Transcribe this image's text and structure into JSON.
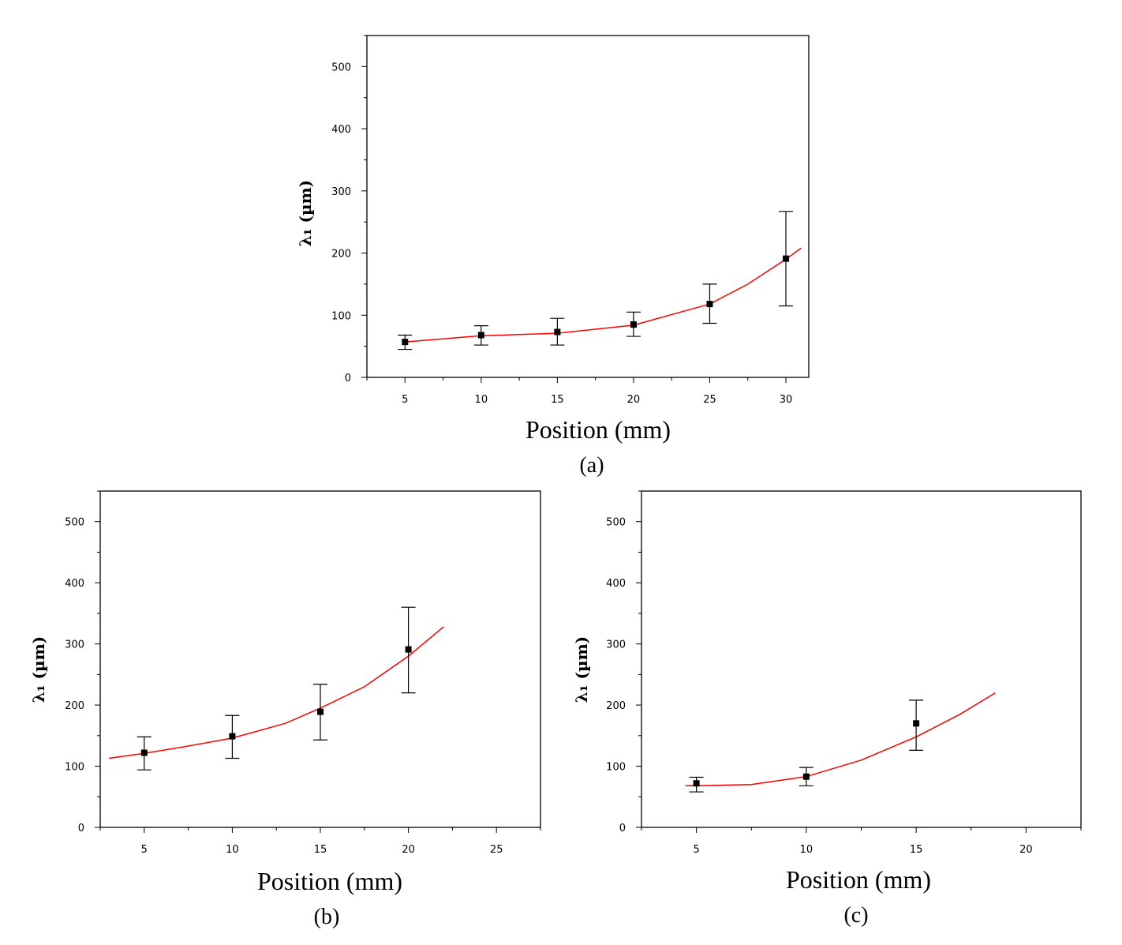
{
  "chart_data": [
    {
      "type": "scatter",
      "panel_label": "(a)",
      "xlabel": "Position (mm)",
      "ylabel": "λ₁ (µm)",
      "xlim": [
        2.5,
        31.5
      ],
      "ylim": [
        0,
        550
      ],
      "xticks": [
        5,
        10,
        15,
        20,
        25,
        30
      ],
      "yticks": [
        0,
        100,
        200,
        300,
        400,
        500
      ],
      "grid": false,
      "legend": "none",
      "marker_color": "#000000",
      "fit_color": "#ff0000",
      "series": [
        {
          "x": [
            5,
            10,
            15,
            20,
            25,
            30
          ],
          "y": [
            57,
            68,
            73,
            85,
            118,
            191
          ],
          "err_low": [
            45,
            52,
            52,
            66,
            87,
            115
          ],
          "err_high": [
            68,
            83,
            95,
            105,
            150,
            267
          ]
        }
      ],
      "fit": {
        "x": [
          5,
          10,
          15,
          20,
          25,
          27.5,
          30,
          31
        ],
        "y": [
          57,
          67,
          71,
          84,
          118,
          150,
          190,
          208
        ]
      }
    },
    {
      "type": "scatter",
      "panel_label": "(b)",
      "xlabel": "Position (mm)",
      "ylabel": "λ₁ (µm)",
      "xlim": [
        2.5,
        27.5
      ],
      "ylim": [
        0,
        550
      ],
      "xticks": [
        5,
        10,
        15,
        20,
        25
      ],
      "yticks": [
        0,
        100,
        200,
        300,
        400,
        500
      ],
      "grid": false,
      "legend": "none",
      "marker_color": "#000000",
      "fit_color": "#ff0000",
      "series": [
        {
          "x": [
            5,
            10,
            15,
            20
          ],
          "y": [
            122,
            149,
            189,
            291
          ],
          "err_low": [
            94,
            113,
            143,
            220
          ],
          "err_high": [
            148,
            183,
            234,
            360
          ]
        }
      ],
      "fit": {
        "x": [
          3,
          5,
          7.5,
          10,
          13,
          15,
          17.5,
          20,
          22
        ],
        "y": [
          113,
          121,
          133,
          146,
          170,
          195,
          230,
          280,
          328
        ]
      }
    },
    {
      "type": "scatter",
      "panel_label": "(c)",
      "xlabel": "Position (mm)",
      "ylabel": "λ₁ (µm)",
      "xlim": [
        2.5,
        22.5
      ],
      "ylim": [
        0,
        550
      ],
      "xticks": [
        5,
        10,
        15,
        20
      ],
      "yticks": [
        0,
        100,
        200,
        300,
        400,
        500
      ],
      "grid": false,
      "legend": "none",
      "marker_color": "#000000",
      "fit_color": "#ff0000",
      "series": [
        {
          "x": [
            5,
            10,
            15
          ],
          "y": [
            72,
            83,
            170
          ],
          "err_low": [
            58,
            68,
            126
          ],
          "err_high": [
            82,
            98,
            208
          ]
        }
      ],
      "fit": {
        "x": [
          4.5,
          5,
          7.5,
          10,
          12.5,
          15,
          17,
          18.6
        ],
        "y": [
          68,
          68,
          70,
          83,
          110,
          148,
          185,
          220
        ]
      }
    }
  ]
}
